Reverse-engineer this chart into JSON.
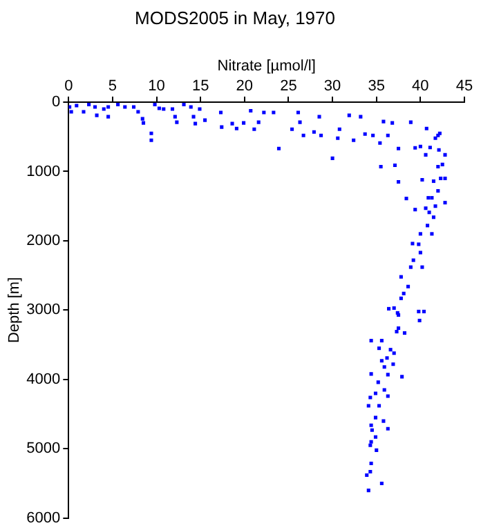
{
  "chart_data": {
    "type": "scatter",
    "title": "MODS2005 in May, 1970",
    "xlabel": "Nitrate [µmol/l]",
    "ylabel": "Depth [m]",
    "xlim": [
      0,
      45
    ],
    "xticks": [
      0,
      5,
      10,
      15,
      20,
      25,
      30,
      35,
      40,
      45
    ],
    "ylim": [
      6000,
      0
    ],
    "yticks": [
      0,
      1000,
      2000,
      3000,
      4000,
      5000,
      6000
    ],
    "grid": false,
    "legend": false,
    "marker": "square",
    "series": [
      {
        "color": "#0000ff",
        "x": [
          0.1,
          0.3,
          0.9,
          1.7,
          2.3,
          3,
          3.2,
          4,
          4.5,
          4.5,
          5.6,
          6.4,
          7.4,
          7.9,
          8.4,
          8.5,
          9.4,
          9.4,
          9.8,
          10.3,
          10.8,
          11.8,
          12.1,
          12.3,
          13.1,
          13.9,
          14.2,
          14.4,
          14.9,
          15.5,
          17.3,
          17.4,
          18.6,
          19.1,
          19.9,
          20.7,
          21.1,
          21.6,
          22.2,
          23.3,
          23.9,
          25.4,
          26.1,
          26.3,
          26.7,
          27.9,
          28.5,
          28.7,
          30,
          30.6,
          30.8,
          31.9,
          32.4,
          33.2,
          33.7,
          34.6,
          35.4,
          35.5,
          35.8,
          36.3,
          36.8,
          37.1,
          37.5,
          37.5,
          38.4,
          38.9,
          39.4,
          39.4,
          40,
          40.7,
          40.9,
          41,
          42,
          41.7,
          42.2,
          41.1,
          42.1,
          40.6,
          42.8,
          42.5,
          42,
          42.3,
          41.5,
          42.8,
          40.2,
          42,
          41.3,
          42.8,
          41.7,
          40.6,
          41.5,
          40.8,
          40,
          41.3,
          39.1,
          39.8,
          40,
          39.2,
          38.9,
          40.2,
          37.8,
          38.6,
          38.1,
          37.8,
          37,
          36.4,
          37.5,
          39.8,
          37.4,
          40.4,
          39.9,
          37.5,
          37.3,
          38.2,
          34.4,
          35.6,
          35.3,
          36.6,
          37,
          36.2,
          35.6,
          35.9,
          36.9,
          34.4,
          35.2,
          36.3,
          37.9,
          35.9,
          34.9,
          36.3,
          34.3,
          34.1,
          35.3,
          34.9,
          34.4,
          35.8,
          34.5,
          36.3,
          34.9,
          34.4,
          34.3,
          35,
          34.4,
          34.3,
          33.9,
          35.6,
          34.1
        ],
        "values": [
          70,
          140,
          50,
          140,
          35,
          70,
          190,
          100,
          210,
          70,
          35,
          70,
          70,
          140,
          240,
          300,
          450,
          550,
          35,
          90,
          100,
          100,
          210,
          290,
          35,
          70,
          210,
          310,
          100,
          260,
          150,
          360,
          310,
          380,
          300,
          125,
          390,
          290,
          150,
          150,
          670,
          390,
          150,
          290,
          480,
          430,
          210,
          480,
          810,
          520,
          390,
          190,
          550,
          210,
          460,
          480,
          590,
          930,
          280,
          480,
          300,
          910,
          670,
          1150,
          1390,
          290,
          660,
          1550,
          640,
          380,
          1380,
          1590,
          480,
          520,
          450,
          655,
          690,
          760,
          760,
          900,
          930,
          1100,
          1140,
          1100,
          1120,
          1280,
          1380,
          1450,
          1500,
          1530,
          1660,
          1780,
          1900,
          1900,
          2040,
          2050,
          2170,
          2280,
          2380,
          2380,
          2520,
          2660,
          2760,
          2830,
          2970,
          2980,
          3070,
          3020,
          3040,
          3020,
          3150,
          3260,
          3310,
          3330,
          3440,
          3440,
          3550,
          3570,
          3620,
          3690,
          3730,
          3820,
          3780,
          3920,
          4040,
          3930,
          3960,
          4150,
          4200,
          4240,
          4260,
          4380,
          4380,
          4550,
          4660,
          4600,
          4730,
          4710,
          4830,
          4900,
          4950,
          5020,
          5210,
          5330,
          5380,
          5500,
          5600
        ]
      }
    ]
  }
}
